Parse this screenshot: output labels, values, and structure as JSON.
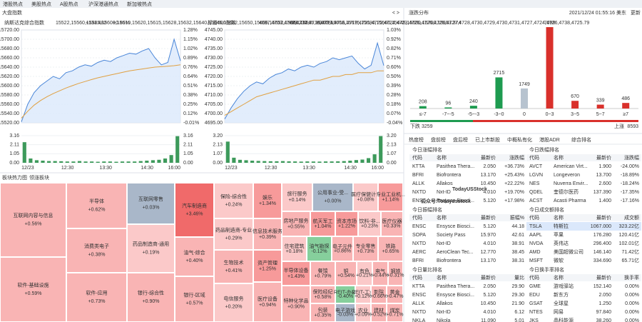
{
  "top_tabs": [
    "港股热点",
    "美股热点",
    "A股热点",
    "沪深港通热点",
    "新加坡热点"
  ],
  "index_panel": {
    "title": "大盘指数",
    "nav": "< >"
  },
  "time_labels": [
    "12/23",
    "12:30",
    "13:30",
    "14:30",
    "16:00"
  ],
  "indices": [
    {
      "name": "纳斯达克综合指数",
      "price": [
        15522,
        15560,
        15585,
        15600,
        15610,
        15620,
        15615,
        15628,
        15632,
        15640,
        15645,
        15642,
        15650,
        15655,
        15652,
        15660,
        15665,
        15670,
        15668,
        15675,
        15680,
        15660,
        15645,
        15650,
        15700,
        15653.374
      ],
      "change": "+131.482",
      "pct": "+0.85%",
      "ylim": [
        15520,
        15720
      ],
      "yticks": [
        {
          "value": 15720,
          "label": "15720.00"
        },
        {
          "value": 15700,
          "label": "15700.00"
        },
        {
          "value": 15680,
          "label": "15680.00"
        },
        {
          "value": 15660,
          "label": "15660.00"
        },
        {
          "value": 15640,
          "label": "15640.00"
        },
        {
          "value": 15620,
          "label": "15620.00"
        },
        {
          "value": 15600,
          "label": "15600.00"
        },
        {
          "value": 15580,
          "label": "15580.00"
        },
        {
          "value": 15560,
          "label": "15560.00"
        },
        {
          "value": 15540,
          "label": "15540.00"
        },
        {
          "value": 15520,
          "label": "15520.00"
        }
      ],
      "pct_labels": [
        "1.28%",
        "1.15%",
        "1.02%",
        "0.89%",
        "0.76%",
        "0.64%",
        "0.51%",
        "0.38%",
        "0.25%",
        "0.12%",
        "-0.01%"
      ],
      "average": [
        15530,
        15545,
        15558,
        15568,
        15576,
        15583,
        15589,
        15595,
        15600,
        15605,
        15609,
        15613,
        15617,
        15620,
        15623,
        15626,
        15629,
        15632,
        15634,
        15636,
        15638,
        15640,
        15641,
        15642,
        15643,
        15645
      ],
      "vol_ylim": [
        0,
        3.16
      ],
      "vol_ticks": [
        3.16,
        2.11,
        1.05,
        {
          "value": 0,
          "label": "0.00"
        }
      ],
      "volume": [
        2.4,
        0.5,
        0.3,
        0.25,
        0.2,
        0.2,
        0.18,
        0.15,
        0.15,
        0.2,
        0.15,
        0.15,
        0.12,
        0.15,
        0.15,
        0.12,
        0.15,
        0.15,
        0.15,
        0.2,
        0.25,
        0.3,
        0.35,
        0.5,
        0.9,
        3.1
      ]
    },
    {
      "name": "标普500指数",
      "price": [
        4697,
        4703,
        4708,
        4712,
        4715,
        4717,
        4716,
        4719,
        4721,
        4722,
        4724,
        4723,
        4725,
        4726,
        4725,
        4727,
        4728,
        4730,
        4729,
        4730,
        4731,
        4727,
        4724,
        4726,
        4738,
        4725.79
      ],
      "change": "+29.230",
      "pct": "+0.62%",
      "ylim": [
        4695,
        4745
      ],
      "yticks": [
        {
          "value": 4745,
          "label": "4745.00"
        },
        {
          "value": 4740,
          "label": "4740.00"
        },
        {
          "value": 4735,
          "label": "4735.00"
        },
        {
          "value": 4730,
          "label": "4730.00"
        },
        {
          "value": 4725,
          "label": "4725.00"
        },
        {
          "value": 4720,
          "label": "4720.00"
        },
        {
          "value": 4715,
          "label": "4715.00"
        },
        {
          "value": 4710,
          "label": "4710.00"
        },
        {
          "value": 4705,
          "label": "4705.00"
        },
        {
          "value": 4700,
          "label": "4700.00"
        },
        {
          "value": 4695,
          "label": "4695.00"
        }
      ],
      "pct_labels": [
        "1.03%",
        "0.92%",
        "0.82%",
        "0.71%",
        "0.60%",
        "0.50%",
        "0.39%",
        "0.28%",
        "0.18%",
        "0.07%",
        "-0.04%"
      ],
      "average": [
        4699,
        4701,
        4703,
        4705,
        4707,
        4709,
        4710,
        4711,
        4712,
        4713,
        4714,
        4715,
        4716,
        4717,
        4718,
        4718,
        4719,
        4720,
        4720,
        4721,
        4721,
        4722,
        4722,
        4722,
        4723,
        4723
      ],
      "vol_ylim": [
        0,
        3.2
      ],
      "vol_ticks": [
        {
          "value": 3.2,
          "label": "3.20"
        },
        2.13,
        1.07,
        {
          "value": 0,
          "label": "0.00"
        }
      ],
      "volume": [
        2.5,
        0.6,
        0.35,
        0.3,
        0.25,
        0.22,
        0.2,
        0.18,
        0.18,
        0.2,
        0.17,
        0.16,
        0.14,
        0.16,
        0.15,
        0.14,
        0.16,
        0.16,
        0.17,
        0.2,
        0.25,
        0.32,
        0.38,
        0.55,
        1.0,
        3.15
      ]
    }
  ],
  "distribution": {
    "title": "涨跌分布",
    "timestamp": "2021/12/24 01:55:16 美东",
    "update": "更新",
    "categories": [
      "≤-7",
      "-7~-5",
      "-5~-3",
      "-3~0",
      "0",
      "0~3",
      "3~5",
      "5~7",
      "≥7"
    ],
    "values": [
      208,
      96,
      240,
      2715,
      1749,
      7098,
      670,
      339,
      486
    ],
    "colors": [
      "#1e9b50",
      "#1e9b50",
      "#1e9b50",
      "#1e9b50",
      "#b7c3cf",
      "#d9302b",
      "#d9302b",
      "#d9302b",
      "#d9302b"
    ],
    "down_label": "下跌",
    "down": 3259,
    "up_label": "上涨",
    "up": 8593
  },
  "rank_tabs": [
    "热度榜",
    "盘前榜",
    "盘后榜",
    "已上市新股",
    "中概私有化",
    "港股ADR",
    "综合排名"
  ],
  "rank_tables": [
    {
      "title": "今日涨幅排名",
      "headers": [
        "代码",
        "名称",
        "最新价",
        "涨跌幅"
      ],
      "rows": [
        [
          "KTTA",
          "Pasithea Thera...",
          "2.050",
          "+36.73%"
        ],
        [
          "BFRI",
          "Biofrontera",
          "13.170",
          "+25.43%"
        ],
        [
          "ALLK",
          "Allakos",
          "10.450",
          "+22.22%"
        ],
        [
          "NXTD",
          "Nxt-ID",
          "4.010",
          "+19.70%"
        ],
        [
          "ENSC",
          "Ensysce Biosci...",
          "5.120",
          "+17.98%"
        ]
      ]
    },
    {
      "title": "今日跌幅排名",
      "headers": [
        "代码",
        "名称",
        "最新价",
        "涨跌幅"
      ],
      "rows": [
        [
          "AVCT",
          "American Virt...",
          "1.900",
          "-24.00%"
        ],
        [
          "LGVN",
          "Longeveron",
          "13.700",
          "-18.89%"
        ],
        [
          "NES",
          "Nuverra Envir...",
          "2.600",
          "-18.24%"
        ],
        [
          "QDEL",
          "奎德尔医药",
          "137.390",
          "-17.35%"
        ],
        [
          "ACST",
          "Acasti Pharma",
          "1.400",
          "-17.16%"
        ]
      ]
    },
    {
      "title": "今日振幅排名",
      "headers": [
        "代码",
        "名称",
        "最新价",
        "振幅%"
      ],
      "rows": [
        [
          "ENSC",
          "Ensysce Biosci...",
          "5.120",
          "44.18"
        ],
        [
          "SOPA",
          "Society Pass",
          "15.970",
          "42.61"
        ],
        [
          "NXTD",
          "Nxt-ID",
          "4.010",
          "38.91"
        ],
        [
          "AERC",
          "AeroClean Tec...",
          "12.770",
          "38.45"
        ],
        [
          "BFRI",
          "Biofrontera",
          "13.170",
          "38.31"
        ]
      ]
    },
    {
      "title": "今日成交额排名",
      "headers": [
        "代码",
        "名称",
        "最新价",
        "成交额"
      ],
      "rows": [
        [
          "TSLA",
          "特斯拉",
          "1067.000",
          "323.22亿"
        ],
        [
          "AAPL",
          "苹果",
          "176.280",
          "120.41亿"
        ],
        [
          "NVDA",
          "英伟达",
          "296.400",
          "102.01亿"
        ],
        [
          "AMD",
          "美国超微公司",
          "146.140",
          "71.42亿"
        ],
        [
          "MSFT",
          "微软",
          "334.690",
          "65.71亿"
        ]
      ]
    },
    {
      "title": "今日量比排名",
      "headers": [
        "代码",
        "名称",
        "最新价",
        "量比"
      ],
      "rows": [
        [
          "KTTA",
          "Pasithea Thera...",
          "2.050",
          "29.90"
        ],
        [
          "ENSC",
          "Ensysce Biosci...",
          "5.120",
          "29.30"
        ],
        [
          "ALLK",
          "Allakos",
          "10.450",
          "21.90"
        ],
        [
          "NXTD",
          "Nxt-ID",
          "4.010",
          "6.12"
        ],
        [
          "NKLA",
          "Nikola",
          "11.090",
          "5.01"
        ]
      ]
    },
    {
      "title": "今日换手率排名",
      "headers": [
        "代码",
        "名称",
        "最新价",
        "换手率"
      ],
      "rows": [
        [
          "GME",
          "游戏驿站",
          "152.140",
          "0.00%"
        ],
        [
          "EDU",
          "新东方",
          "2.050",
          "0.00%"
        ],
        [
          "GSAT",
          "全球星",
          "1.250",
          "0.00%"
        ],
        [
          "NTES",
          "网易",
          "97.840",
          "0.00%"
        ],
        [
          "JKS",
          "晶科能源",
          "38.260",
          "0.00%"
        ]
      ]
    }
  ],
  "watermarks": [
    "TodayUSStock",
    "公众号:Todayusstock"
  ],
  "heatmap": {
    "tabs": [
      "板块热力图",
      "领涨板块"
    ],
    "tiles": [
      {
        "name": "互联网内容与信息",
        "change": "+0.56%"
      },
      {
        "name": "软件-基础设施",
        "change": "+0.59%"
      },
      {
        "name": "半导体",
        "change": "+0.62%"
      },
      {
        "name": "消费类电子",
        "change": "+0.38%"
      },
      {
        "name": "软件-应用",
        "change": "+0.73%"
      },
      {
        "name": "互联网零售",
        "change": "+0.03%"
      },
      {
        "name": "药品制造商-通用",
        "change": "+0.19%"
      },
      {
        "name": "银行-综合性",
        "change": "+0.90%"
      },
      {
        "name": "汽车制造商",
        "change": "+3.46%"
      },
      {
        "name": "油气-综合",
        "change": "+0.40%"
      },
      {
        "name": "银行-区域",
        "change": "+0.57%"
      },
      {
        "name": "保险-综合性",
        "change": "+0.24%"
      },
      {
        "name": "药品制造商-专业",
        "change": "+0.29%"
      },
      {
        "name": "生物技术",
        "change": "+0.41%"
      },
      {
        "name": "电信服务",
        "change": "+0.20%"
      },
      {
        "name": "娱乐",
        "change": "+1.34%"
      },
      {
        "name": "信息技术服务",
        "change": "+0.39%"
      },
      {
        "name": "资产管理",
        "change": "+1.25%"
      },
      {
        "name": "医疗设备",
        "change": "+0.94%"
      },
      {
        "name": "旅行服务",
        "change": "+0.14%"
      },
      {
        "name": "公用事业-受...",
        "change": "+0.00%"
      },
      {
        "name": "医疗保健计...",
        "change": "+0.08%"
      },
      {
        "name": "专业工业机...",
        "change": "+1.14%"
      },
      {
        "name": "房地产服务",
        "change": "+0.55%"
      },
      {
        "name": "航天军工",
        "change": "+1.04%"
      },
      {
        "name": "资本市场",
        "change": "+1.22%"
      },
      {
        "name": "饮料-非...",
        "change": "+0.23%"
      },
      {
        "name": "医疗仪器",
        "change": "+0.33%"
      },
      {
        "name": "住宅建筑",
        "change": "+0.18%"
      },
      {
        "name": "油气勘探",
        "change": "-0.12%"
      },
      {
        "name": "电子元件",
        "change": "+0.86%"
      },
      {
        "name": "专业零售",
        "change": "+0.73%"
      },
      {
        "name": "铁路",
        "change": "+0.65%"
      },
      {
        "name": "半导体设备",
        "change": "+1.43%"
      },
      {
        "name": "餐馆",
        "change": "+0.79%"
      },
      {
        "name": "铜",
        "change": "+0.54%"
      },
      {
        "name": "有色",
        "change": "+0.21%"
      },
      {
        "name": "电气",
        "change": "+0.44%"
      },
      {
        "name": "钢铁",
        "change": "+0.31%"
      },
      {
        "name": "特种化学品",
        "change": "+0.90%"
      },
      {
        "name": "保险经纪",
        "change": "+0.58%"
      },
      {
        "name": "REIT-办公",
        "change": "-0.40%"
      },
      {
        "name": "REIT-工业",
        "change": "+0.12%"
      },
      {
        "name": "影院",
        "change": "+0.66%"
      },
      {
        "name": "黄金",
        "change": "+0.47%"
      },
      {
        "name": "包装",
        "change": "+0.35%"
      },
      {
        "name": "电子游戏",
        "change": "-0.03%"
      },
      {
        "name": "农业",
        "change": "+0.09%"
      },
      {
        "name": "建材",
        "change": "+0.52%"
      },
      {
        "name": "煤炭",
        "change": "+0.71%"
      }
    ]
  }
}
